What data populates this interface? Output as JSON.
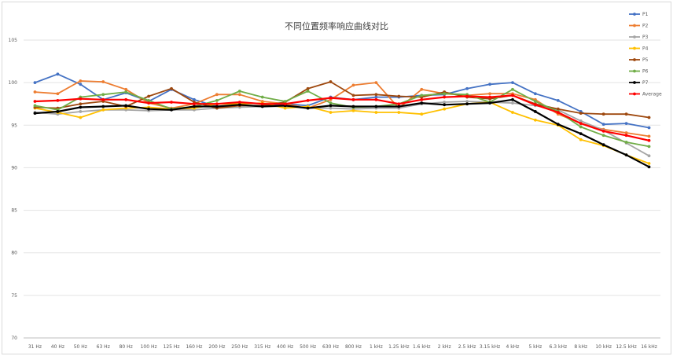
{
  "chart_data": {
    "type": "line",
    "title": "不同位置频率响应曲线对比",
    "xlabel": "",
    "ylabel": "",
    "ylim": [
      70,
      105
    ],
    "yticks": [
      70,
      75,
      80,
      85,
      90,
      95,
      100,
      105
    ],
    "grid": true,
    "legend_position": "right",
    "categories": [
      "31 Hz",
      "40 Hz",
      "50 Hz",
      "63 Hz",
      "80 Hz",
      "100 Hz",
      "125 Hz",
      "160 Hz",
      "200 Hz",
      "250 Hz",
      "315 Hz",
      "400 Hz",
      "500 Hz",
      "630 Hz",
      "800 Hz",
      "1 kHz",
      "1.25 kHz",
      "1.6 kHz",
      "2 kHz",
      "2.5 kHz",
      "3.15 kHz",
      "4 kHz",
      "5 kHz",
      "6.3 kHz",
      "8 kHz",
      "10 kHz",
      "12.5 kHz",
      "16 kHz"
    ],
    "series": [
      {
        "name": "P1",
        "color": "#4472C4",
        "values": [
          100,
          101,
          99.8,
          98,
          98.8,
          97.8,
          99.2,
          98,
          97.2,
          97.3,
          97.3,
          97.5,
          97.3,
          98.3,
          98,
          98.3,
          98.3,
          98.5,
          98.6,
          99.3,
          99.8,
          100,
          98.7,
          97.9,
          96.6,
          95.1,
          95.2,
          94.7
        ]
      },
      {
        "name": "P2",
        "color": "#ED7D31",
        "values": [
          98.9,
          98.7,
          100.2,
          100.1,
          99.2,
          97.6,
          97,
          97.5,
          98.6,
          98.6,
          97.8,
          97.5,
          97,
          98,
          99.7,
          100,
          97,
          99.2,
          98.7,
          98.5,
          98.7,
          98.7,
          98,
          96.3,
          95.2,
          94.5,
          94.1,
          93.7
        ]
      },
      {
        "name": "P3",
        "color": "#A5A5A5",
        "values": [
          96.5,
          96.3,
          96.6,
          96.8,
          96.8,
          96.7,
          96.8,
          96.8,
          97,
          97.1,
          97.2,
          97.2,
          97,
          97,
          96.9,
          97,
          97,
          97.5,
          97.7,
          97.8,
          97.7,
          97.6,
          97.3,
          96.8,
          95.5,
          94.4,
          92.9,
          91.4
        ]
      },
      {
        "name": "P4",
        "color": "#FFC000",
        "values": [
          97,
          96.5,
          95.9,
          96.8,
          97,
          97.1,
          96.9,
          97,
          97.5,
          97.5,
          97.6,
          97,
          97.2,
          96.5,
          96.7,
          96.5,
          96.5,
          96.3,
          96.9,
          97.5,
          97.7,
          96.5,
          95.6,
          95,
          93.3,
          92.6,
          91.5,
          90.5
        ]
      },
      {
        "name": "P5",
        "color": "#9E480E",
        "values": [
          97.1,
          97,
          97.5,
          97.8,
          97.2,
          98.4,
          99.3,
          97.7,
          97,
          97.3,
          97.3,
          97.7,
          99.3,
          100.1,
          98.5,
          98.6,
          98.4,
          98.3,
          98.9,
          98.3,
          98.1,
          98.5,
          97.5,
          96.9,
          96.4,
          96.3,
          96.3,
          95.9
        ]
      },
      {
        "name": "P6",
        "color": "#70AD47",
        "values": [
          97.3,
          96.8,
          98.3,
          98.6,
          98.9,
          97.9,
          96.9,
          97.2,
          97.9,
          99,
          98.3,
          97.8,
          99,
          97.6,
          97.1,
          97.2,
          97.5,
          98.5,
          98.7,
          98.6,
          97.7,
          99.2,
          97.8,
          96.6,
          94.8,
          93.8,
          93,
          92.5
        ]
      },
      {
        "name": "P7",
        "color": "#000000",
        "values": [
          96.4,
          96.6,
          97.1,
          97.2,
          97.3,
          96.9,
          96.8,
          97.2,
          97.2,
          97.4,
          97.2,
          97.3,
          97,
          97.3,
          97.2,
          97.2,
          97.2,
          97.6,
          97.4,
          97.5,
          97.6,
          98,
          96.6,
          95.1,
          94,
          92.7,
          91.5,
          90.1
        ]
      },
      {
        "name": "Average",
        "color": "#FF0000",
        "values": [
          97.8,
          97.9,
          98.1,
          98,
          98,
          97.6,
          97.7,
          97.5,
          97.5,
          97.7,
          97.5,
          97.5,
          97.9,
          98.2,
          98,
          98,
          97.5,
          98,
          98.3,
          98.4,
          98.3,
          98.5,
          97.4,
          96.5,
          95.2,
          94.3,
          93.8,
          93.2
        ]
      }
    ]
  }
}
